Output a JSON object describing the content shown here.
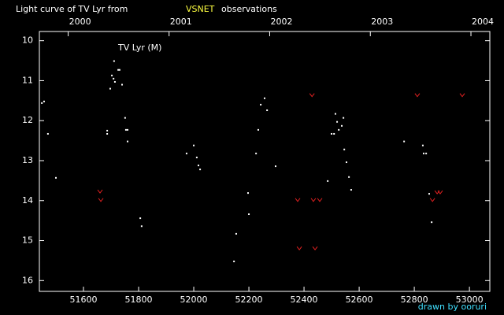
{
  "chart_data": {
    "type": "scatter",
    "title": "Light curve of TV Lyr from",
    "title_source": "VSNET",
    "title_suffix": "observations",
    "label": "TV Lyr (M)",
    "credit": "drawn by ooruri",
    "background": "#000000",
    "xlim": [
      51440,
      53074
    ],
    "ylim": [
      16.27,
      9.77
    ],
    "xticks": [
      51600,
      51800,
      52000,
      52200,
      52400,
      52600,
      52800,
      53000
    ],
    "x2ticks": [
      {
        "value": 51544.5,
        "label": "2000"
      },
      {
        "value": 51910.5,
        "label": "2001"
      },
      {
        "value": 52275.5,
        "label": "2002"
      },
      {
        "value": 52640.5,
        "label": "2003"
      },
      {
        "value": 53005.5,
        "label": "2004"
      }
    ],
    "yticks": [
      10,
      11,
      12,
      13,
      14,
      15,
      16
    ],
    "series": [
      {
        "color": "#ffffff",
        "marker": "dot",
        "x": [
          51449,
          51457,
          51471,
          51500,
          51686,
          51686,
          51697,
          51703,
          51709,
          51714,
          51711,
          51726,
          51731,
          51740,
          51751,
          51754,
          51760,
          51760,
          51806,
          51811,
          51974,
          52000,
          52011,
          52017,
          52023,
          52146,
          52154,
          52197,
          52200,
          52226,
          52234,
          52243,
          52257,
          52266,
          52297,
          52486,
          52500,
          52509,
          52514,
          52520,
          52526,
          52537,
          52543,
          52546,
          52554,
          52563,
          52571,
          52763,
          52831,
          52834,
          52843,
          52854,
          52863
        ],
        "values": [
          11.56,
          11.52,
          12.33,
          13.43,
          12.25,
          12.33,
          11.2,
          10.87,
          10.95,
          11.03,
          10.51,
          10.73,
          10.73,
          11.1,
          11.93,
          12.23,
          12.23,
          12.52,
          14.44,
          14.64,
          12.82,
          12.62,
          12.92,
          13.12,
          13.22,
          15.52,
          14.83,
          13.81,
          14.34,
          12.82,
          12.23,
          11.6,
          11.44,
          11.74,
          13.14,
          13.51,
          12.33,
          12.33,
          11.83,
          12.03,
          12.23,
          12.13,
          11.93,
          12.72,
          13.04,
          13.41,
          13.73,
          12.52,
          12.62,
          12.82,
          12.82,
          13.83,
          14.54
        ]
      },
      {
        "color": "#e02020",
        "marker": "v",
        "x": [
          51660,
          51663,
          52377,
          52383,
          52429,
          52434,
          52440,
          52457,
          52811,
          52866,
          52883,
          52894,
          52974
        ],
        "values": [
          13.77,
          13.98,
          13.98,
          15.19,
          11.36,
          13.98,
          15.19,
          13.98,
          11.36,
          13.98,
          13.79,
          13.79,
          11.36
        ]
      }
    ]
  }
}
